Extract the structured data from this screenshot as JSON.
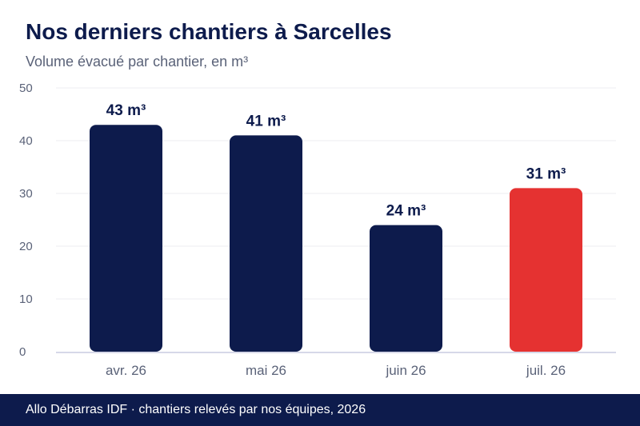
{
  "header": {
    "title": "Nos derniers chantiers à Sarcelles",
    "subtitle": "Volume évacué par chantier, en m³"
  },
  "chart_data": {
    "type": "bar",
    "title": "Nos derniers chantiers à Sarcelles",
    "subtitle": "Volume évacué par chantier, en m³",
    "xlabel": "",
    "ylabel": "",
    "ylim": [
      0,
      50
    ],
    "yticks": [
      0,
      10,
      20,
      30,
      40,
      50
    ],
    "grid": true,
    "unit": "m³",
    "categories": [
      "avr. 26",
      "mai 26",
      "juin 26",
      "juil. 26"
    ],
    "values": [
      43,
      41,
      24,
      31
    ],
    "data_labels": [
      "43 m³",
      "41 m³",
      "24 m³",
      "31 m³"
    ],
    "colors": [
      "#0d1b4c",
      "#0d1b4c",
      "#0d1b4c",
      "#e53231"
    ]
  },
  "footer": {
    "text": "Allo Débarras IDF · chantiers relevés par nos équipes, 2026"
  }
}
